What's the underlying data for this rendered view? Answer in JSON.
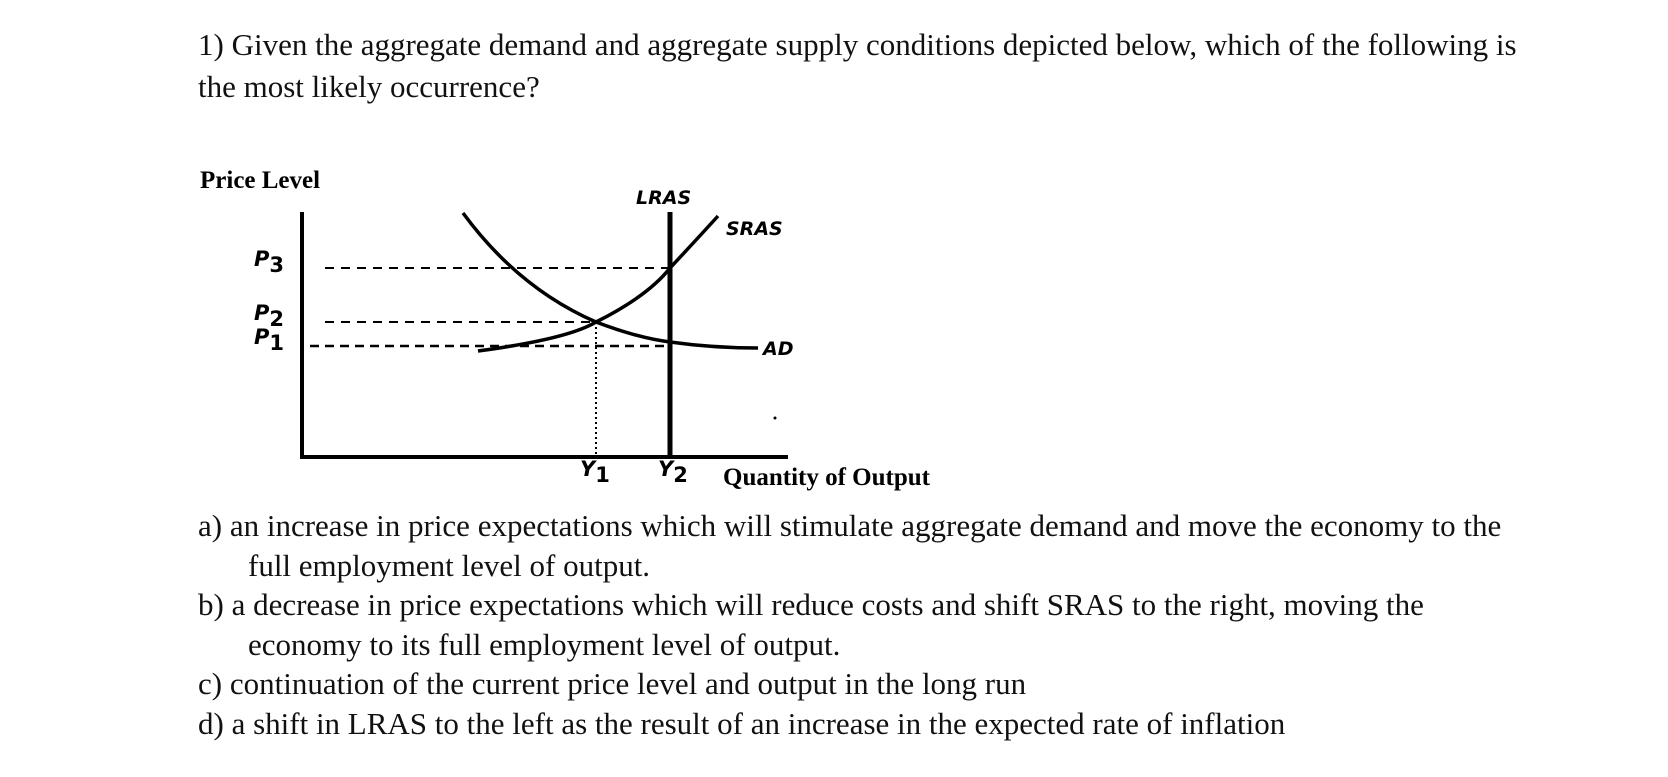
{
  "question": {
    "text": "1) Given the aggregate demand and aggregate supply conditions depicted below, which of the following is the most likely occurrence?"
  },
  "figure": {
    "y_axis_label": "Price Level",
    "x_axis_label": "Quantity of Output",
    "curve_labels": {
      "lras": "LRAS",
      "sras": "SRAS",
      "ad": "AD"
    },
    "price_labels": [
      {
        "letter": "P",
        "sub": "3"
      },
      {
        "letter": "P",
        "sub": "2"
      },
      {
        "letter": "P",
        "sub": "1"
      }
    ],
    "output_labels": [
      {
        "letter": "Y",
        "sub": "1"
      },
      {
        "letter": "Y",
        "sub": "2"
      }
    ]
  },
  "options": [
    {
      "text": "a) an increase in price expectations which will stimulate aggregate demand and move   the economy to the full employment level of output."
    },
    {
      "text": "b) a decrease in price expectations which will reduce costs and shift SRAS to the right, moving the economy to its full employment level of output."
    },
    {
      "text": "c) continuation of the current price level and output in the long run"
    },
    {
      "text": "d) a shift in LRAS to the left as the result of an increase in the expected rate of inflation"
    }
  ]
}
